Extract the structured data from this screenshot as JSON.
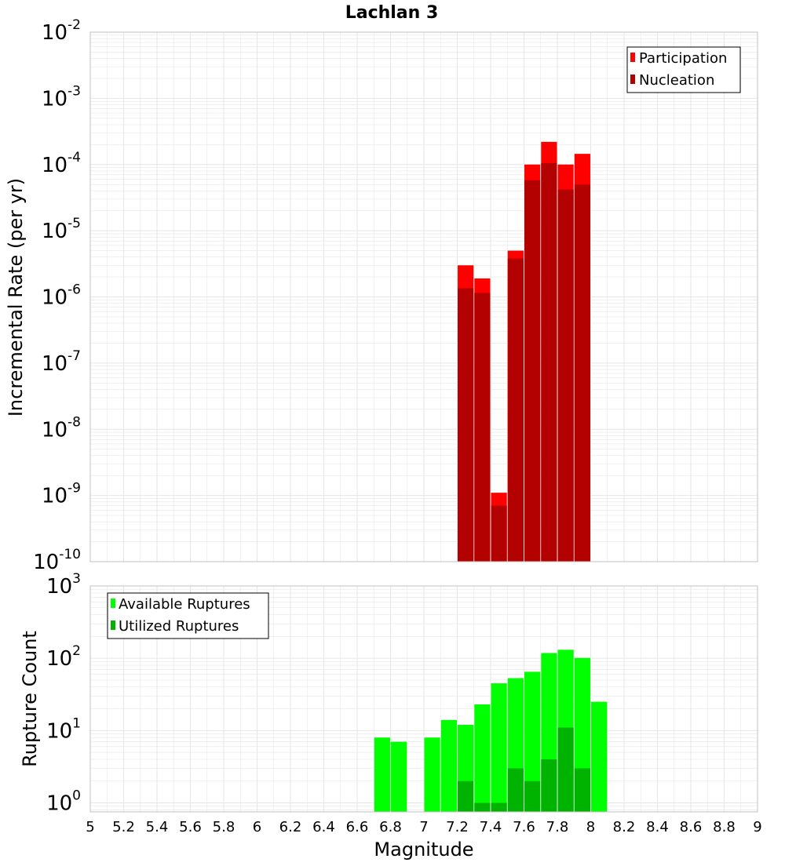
{
  "title": "Lachlan 3",
  "xlabel": "Magnitude",
  "x_ticks": [
    "5",
    "5.2",
    "5.4",
    "5.6",
    "5.8",
    "6",
    "6.2",
    "6.4",
    "6.6",
    "6.8",
    "7",
    "7.2",
    "7.4",
    "7.6",
    "7.8",
    "8",
    "8.2",
    "8.4",
    "8.6",
    "8.8",
    "9"
  ],
  "colors": {
    "participation": "#ff0000",
    "nucleation": "#b30000",
    "available": "#00ff00",
    "utilized": "#00b300",
    "grid": "#e6e6e6",
    "frame": "#c0c0c0"
  },
  "chart_data": [
    {
      "type": "bar",
      "ylabel": "Incremental Rate (per yr)",
      "yscale": "log",
      "xlim": [
        5,
        9
      ],
      "ylim": [
        1e-10,
        0.01
      ],
      "y_ticks": [
        {
          "base": "10",
          "exp": "-10"
        },
        {
          "base": "10",
          "exp": "-9"
        },
        {
          "base": "10",
          "exp": "-8"
        },
        {
          "base": "10",
          "exp": "-7"
        },
        {
          "base": "10",
          "exp": "-6"
        },
        {
          "base": "10",
          "exp": "-5"
        },
        {
          "base": "10",
          "exp": "-4"
        },
        {
          "base": "10",
          "exp": "-3"
        },
        {
          "base": "10",
          "exp": "-2"
        }
      ],
      "legend": {
        "position": "top-right",
        "entries": [
          "Participation",
          "Nucleation"
        ]
      },
      "grid": true,
      "series": [
        {
          "name": "Participation",
          "x": [
            7.25,
            7.35,
            7.45,
            7.55,
            7.65,
            7.75,
            7.85,
            7.95
          ],
          "values": [
            3e-06,
            1.9e-06,
            1.1e-09,
            5e-06,
            0.0001,
            0.00022,
            0.0001,
            0.000145
          ]
        },
        {
          "name": "Nucleation",
          "x": [
            7.25,
            7.35,
            7.45,
            7.55,
            7.65,
            7.75,
            7.85,
            7.95
          ],
          "values": [
            1.35e-06,
            1.15e-06,
            7e-10,
            3.8e-06,
            5.8e-05,
            0.000105,
            4.2e-05,
            5e-05
          ]
        }
      ]
    },
    {
      "type": "bar",
      "ylabel": "Rupture Count",
      "yscale": "log",
      "xlim": [
        5,
        9
      ],
      "ylim": [
        0.75,
        1000
      ],
      "y_ticks": [
        {
          "base": "10",
          "exp": "0"
        },
        {
          "base": "10",
          "exp": "1"
        },
        {
          "base": "10",
          "exp": "2"
        },
        {
          "base": "10",
          "exp": "3"
        }
      ],
      "legend": {
        "position": "top-left",
        "entries": [
          "Available Ruptures",
          "Utilized Ruptures"
        ]
      },
      "grid": true,
      "series": [
        {
          "name": "Available Ruptures",
          "x": [
            6.75,
            6.85,
            7.05,
            7.15,
            7.25,
            7.35,
            7.45,
            7.55,
            7.65,
            7.75,
            7.85,
            7.95,
            8.05
          ],
          "values": [
            8,
            7,
            8,
            14,
            12,
            23,
            45,
            53,
            65,
            118,
            131,
            101,
            25
          ]
        },
        {
          "name": "Utilized Ruptures",
          "x": [
            7.25,
            7.35,
            7.45,
            7.55,
            7.65,
            7.75,
            7.85,
            7.95
          ],
          "values": [
            2,
            1,
            1,
            3,
            2,
            4,
            11,
            3
          ]
        }
      ]
    }
  ]
}
